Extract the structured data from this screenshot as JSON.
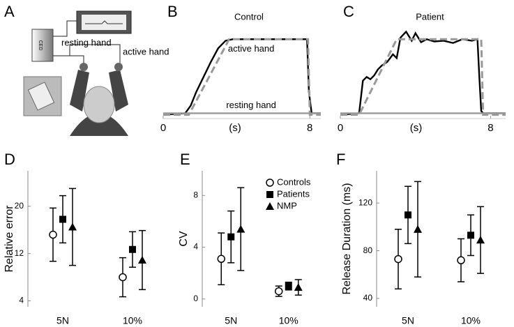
{
  "diagram": {
    "label": "A",
    "resting_label": "resting hand",
    "active_label": "active hand",
    "device_label": "CED"
  },
  "chart_data": [
    {
      "type": "line",
      "panel": "B",
      "title": "Control",
      "xlabel": "(s)",
      "xlim": [
        0,
        8.6
      ],
      "ylim": [
        -0.05,
        1.15
      ],
      "xticks": [
        0,
        8
      ],
      "series": [
        {
          "name": "active hand",
          "color": "#000000",
          "style": "solid",
          "x": [
            0,
            1.2,
            1.5,
            1.8,
            2.2,
            2.6,
            3.0,
            3.4,
            3.8,
            4.5,
            5.5,
            6.5,
            7.5,
            7.85,
            7.95,
            8.1,
            8.6
          ],
          "values": [
            0,
            0.02,
            0.12,
            0.3,
            0.5,
            0.7,
            0.88,
            0.98,
            1.0,
            1.0,
            1.0,
            1.0,
            1.0,
            1.0,
            0.3,
            0.02,
            0.02
          ]
        },
        {
          "color": "#999999",
          "style": "dashed",
          "x": [
            0,
            1.4,
            3.6,
            7.9,
            8.0,
            8.6
          ],
          "values": [
            0,
            0,
            1,
            1,
            0,
            0
          ]
        },
        {
          "name": "resting hand",
          "color": "#999999",
          "style": "solid",
          "x": [
            0,
            8.6
          ],
          "values": [
            0.02,
            0.02
          ]
        }
      ]
    },
    {
      "type": "line",
      "panel": "C",
      "title": "Patient",
      "xlabel": "(s)",
      "xlim": [
        0,
        8.8
      ],
      "ylim": [
        -0.05,
        1.15
      ],
      "xticks": [
        0,
        8
      ],
      "series": [
        {
          "color": "#000000",
          "style": "solid",
          "x": [
            0,
            1.0,
            1.2,
            1.4,
            1.6,
            1.8,
            2.0,
            2.2,
            2.5,
            2.8,
            3.0,
            3.2,
            3.5,
            3.8,
            4.0,
            4.3,
            4.6,
            5.0,
            5.5,
            6.0,
            6.5,
            7.0,
            7.3,
            7.4,
            7.5,
            7.6,
            8.8
          ],
          "values": [
            0,
            0.02,
            0.45,
            0.5,
            0.47,
            0.52,
            0.6,
            0.65,
            0.7,
            0.8,
            0.75,
            1.02,
            1.1,
            0.98,
            1.08,
            0.96,
            1.0,
            0.97,
            0.98,
            0.95,
            1.0,
            0.98,
            1.0,
            0.5,
            0.05,
            0.02,
            0.02
          ]
        },
        {
          "color": "#999999",
          "style": "dashed",
          "x": [
            0,
            1.0,
            3.0,
            7.5,
            7.6,
            8.8
          ],
          "values": [
            0,
            0,
            1,
            1,
            0,
            0
          ]
        },
        {
          "color": "#999999",
          "style": "solid",
          "x": [
            0,
            8.8
          ],
          "values": [
            0.02,
            0.02
          ]
        }
      ]
    },
    {
      "type": "errorbar",
      "panel": "D",
      "ylabel": "Relative error",
      "categories": [
        "5N",
        "10%"
      ],
      "ylim": [
        3,
        26
      ],
      "yticks": [
        4,
        12,
        20
      ],
      "series": [
        {
          "name": "Controls",
          "marker": "circle",
          "color": "#000000",
          "values": [
            15.2,
            8.0
          ],
          "errors": [
            4.5,
            3.3
          ]
        },
        {
          "name": "Patients",
          "marker": "square",
          "color": "#000000",
          "values": [
            17.8,
            12.7
          ],
          "errors": [
            4.0,
            3.0
          ]
        },
        {
          "name": "NMP",
          "marker": "triangle",
          "color": "#000000",
          "values": [
            16.5,
            10.9
          ],
          "errors": [
            6.5,
            5.0
          ]
        }
      ]
    },
    {
      "type": "errorbar",
      "panel": "E",
      "ylabel": "CV",
      "categories": [
        "5N",
        "10%"
      ],
      "ylim": [
        -0.6,
        9.9
      ],
      "yticks": [
        0,
        4,
        8
      ],
      "legend": "upper right",
      "series": [
        {
          "name": "Controls",
          "marker": "circle",
          "color": "#000000",
          "values": [
            3.1,
            0.6
          ],
          "errors": [
            2.0,
            0.4
          ]
        },
        {
          "name": "Patients",
          "marker": "square",
          "color": "#000000",
          "values": [
            4.8,
            1.0
          ],
          "errors": [
            2.0,
            0.3
          ]
        },
        {
          "name": "NMP",
          "marker": "triangle",
          "color": "#000000",
          "values": [
            5.4,
            0.9
          ],
          "errors": [
            3.2,
            0.6
          ]
        }
      ]
    },
    {
      "type": "errorbar",
      "panel": "F",
      "ylabel": "Release Duration (ms)",
      "categories": [
        "5N",
        "10%"
      ],
      "ylim": [
        33,
        147
      ],
      "yticks": [
        40,
        80,
        120
      ],
      "series": [
        {
          "name": "Controls",
          "marker": "circle",
          "color": "#000000",
          "values": [
            73,
            72
          ],
          "errors": [
            25,
            18
          ]
        },
        {
          "name": "Patients",
          "marker": "square",
          "color": "#000000",
          "values": [
            110,
            93
          ],
          "errors": [
            24,
            17
          ]
        },
        {
          "name": "NMP",
          "marker": "triangle",
          "color": "#000000",
          "values": [
            98,
            89
          ],
          "errors": [
            40,
            28
          ]
        }
      ]
    }
  ]
}
